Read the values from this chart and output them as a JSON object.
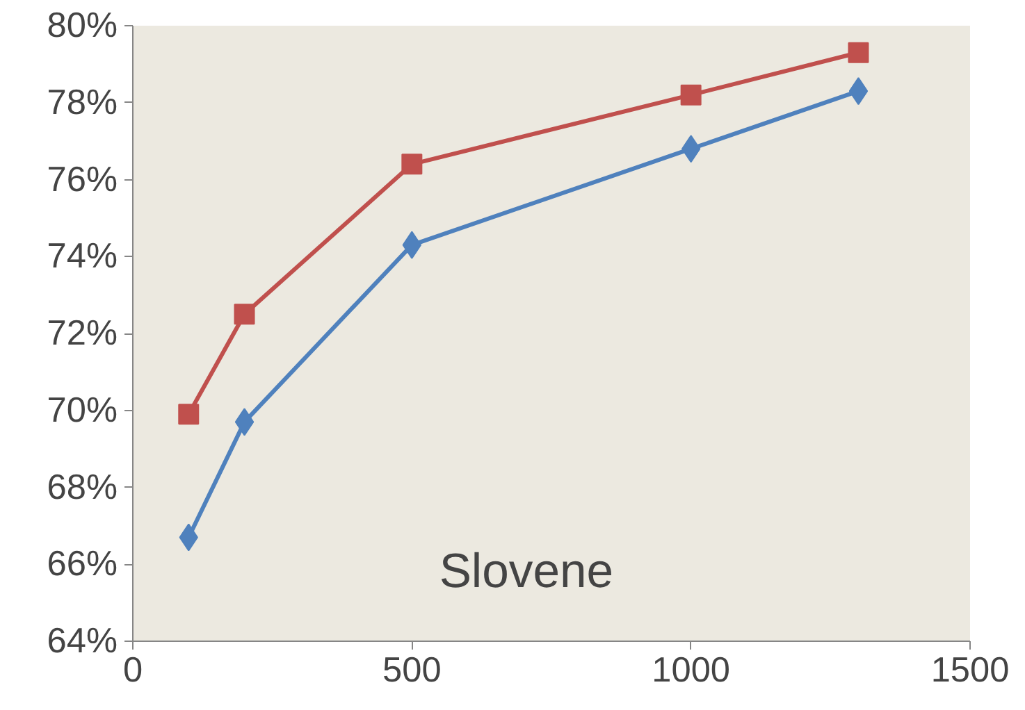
{
  "chart_data": {
    "type": "line",
    "x": [
      100,
      200,
      500,
      1000,
      1300
    ],
    "series": [
      {
        "color": "#c0504d",
        "marker": "square",
        "values": [
          69.9,
          72.5,
          76.4,
          78.2,
          79.3
        ]
      },
      {
        "color": "#4f81bd",
        "marker": "diamond",
        "values": [
          66.7,
          69.7,
          74.3,
          76.8,
          78.3
        ]
      }
    ],
    "xlim": [
      0,
      1500
    ],
    "xticks": [
      0,
      500,
      1000,
      1500
    ],
    "ylim": [
      64,
      80
    ],
    "yticks": [
      {
        "value": 64,
        "label": "64%"
      },
      {
        "value": 66,
        "label": "66%"
      },
      {
        "value": 68,
        "label": "68%"
      },
      {
        "value": 70,
        "label": "70%"
      },
      {
        "value": 72,
        "label": "72%"
      },
      {
        "value": 74,
        "label": "74%"
      },
      {
        "value": 76,
        "label": "76%"
      },
      {
        "value": 78,
        "label": "78%"
      },
      {
        "value": 80,
        "label": "80%"
      }
    ],
    "annotations": [
      "Slovene"
    ],
    "grid": false,
    "line_style": "solid"
  }
}
